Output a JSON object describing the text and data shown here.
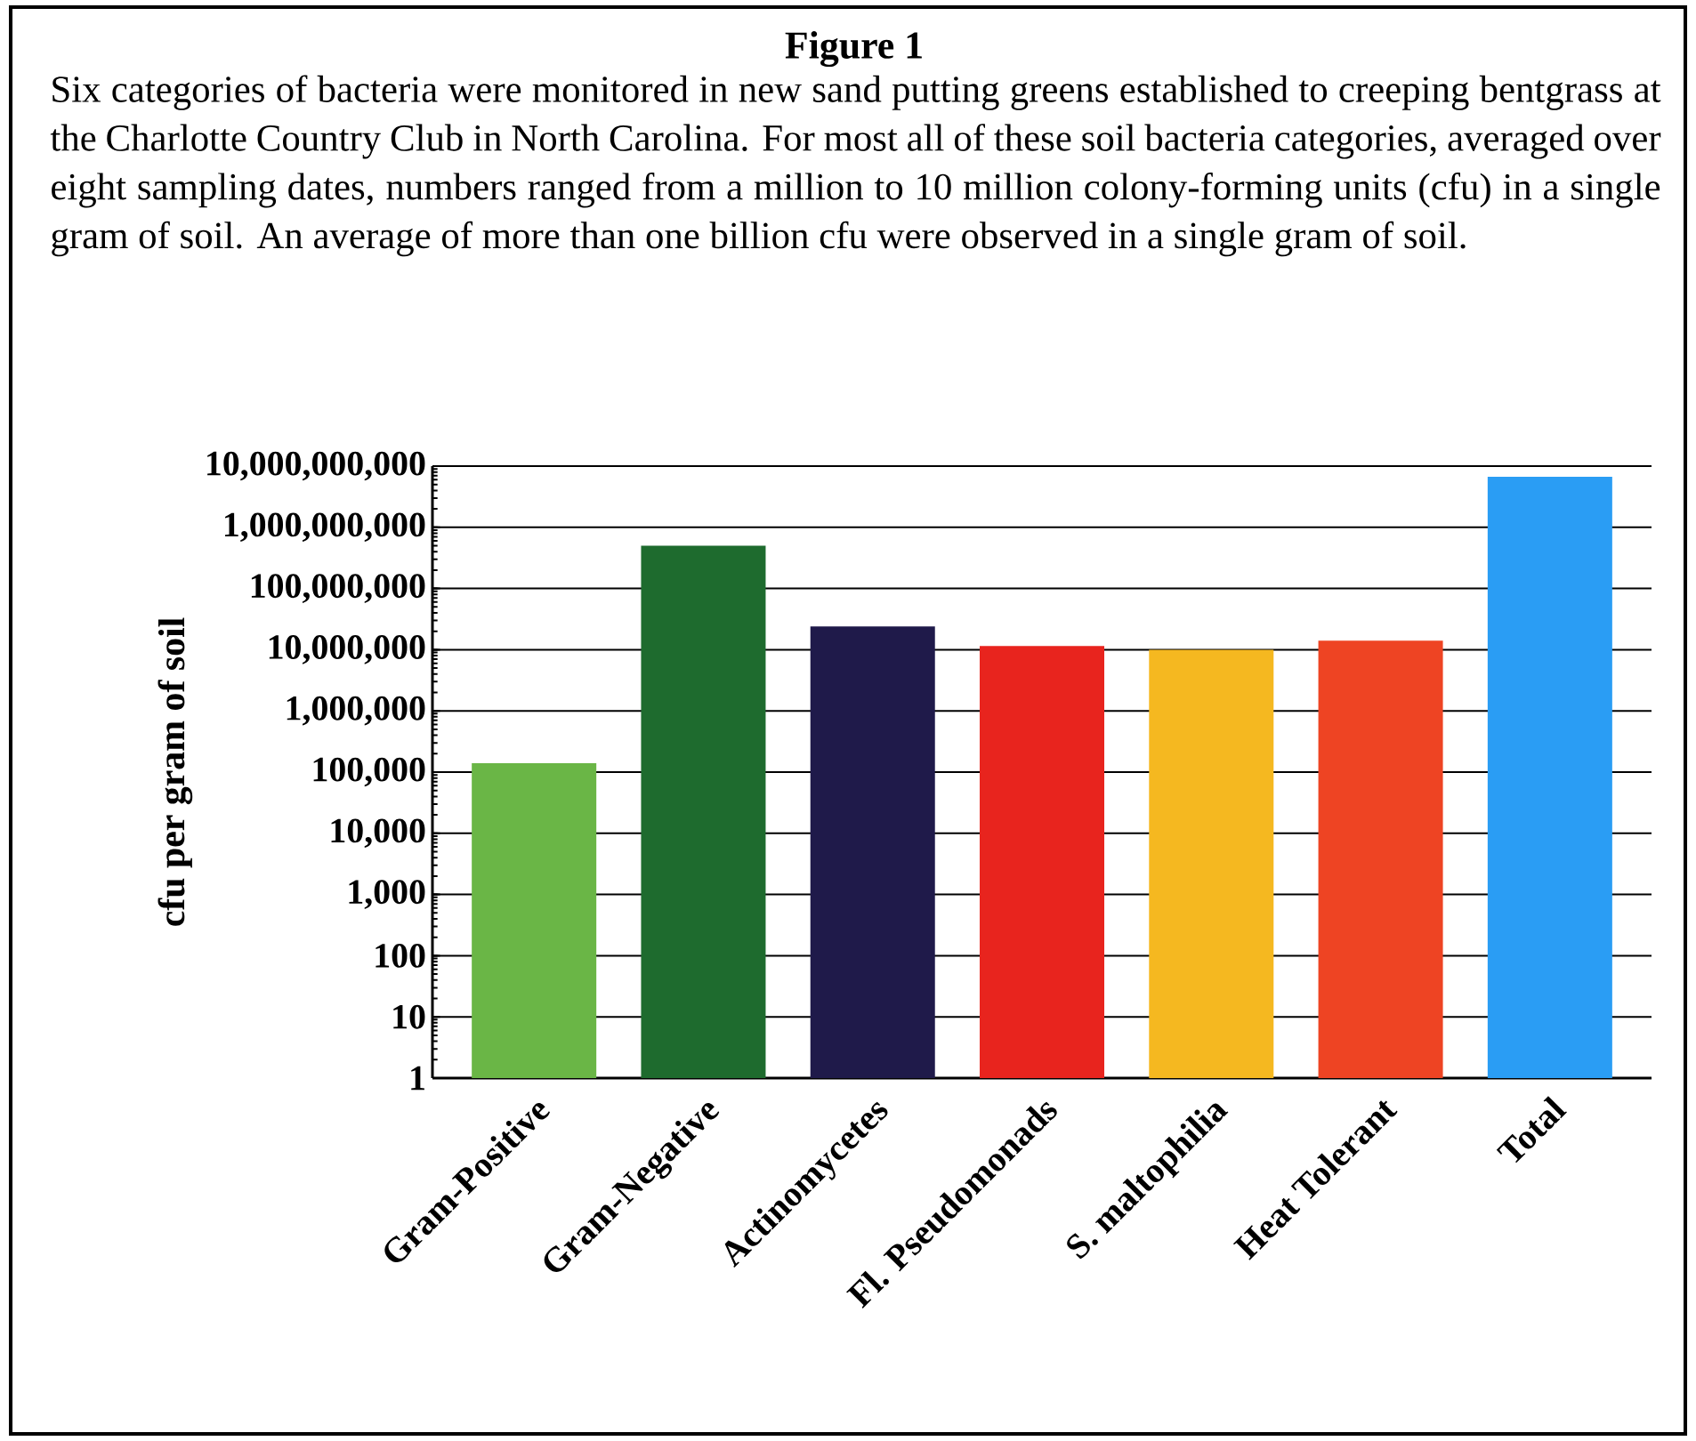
{
  "chart_data": {
    "type": "bar",
    "title": "Figure 1",
    "subtitle": "Six categories of bacteria were monitored in new sand putting greens established to creeping bentgrass at the Charlotte Country Club in North Carolina. For most all of these soil bacteria categories, averaged over eight sampling dates, numbers ranged from a million to 10 million colony-forming units (cfu) in a single gram of soil. An average of more than one billion cfu were observed in a single gram of soil.",
    "ylabel": "cfu per gram of soil",
    "categories": [
      "Gram-Positive",
      "Gram-Negative",
      "Actinomycetes",
      "Fl. Pseudomonads",
      "S. maltophilia",
      "Heat Tolerant",
      "Total"
    ],
    "values": [
      140000,
      500000000,
      24000000,
      11500000,
      10000000,
      14000000,
      6700000000
    ],
    "colors": [
      "#6ab646",
      "#1e6b2e",
      "#1f1a4a",
      "#e8241e",
      "#f5b820",
      "#ee4423",
      "#2a9df4"
    ],
    "log": "y",
    "ylim": [
      1,
      10000000000
    ],
    "yticks": [
      {
        "value": 1,
        "label": "1"
      },
      {
        "value": 10,
        "label": "10"
      },
      {
        "value": 100,
        "label": "100"
      },
      {
        "value": 1000,
        "label": "1,000"
      },
      {
        "value": 10000,
        "label": "10,000"
      },
      {
        "value": 100000,
        "label": "100,000"
      },
      {
        "value": 1000000,
        "label": "1,000,000"
      },
      {
        "value": 10000000,
        "label": "10,000,000"
      },
      {
        "value": 100000000,
        "label": "100,000,000"
      },
      {
        "value": 1000000000,
        "label": "1,000,000,000"
      },
      {
        "value": 10000000000,
        "label": "10,000,000,000"
      }
    ],
    "grid": "y"
  }
}
